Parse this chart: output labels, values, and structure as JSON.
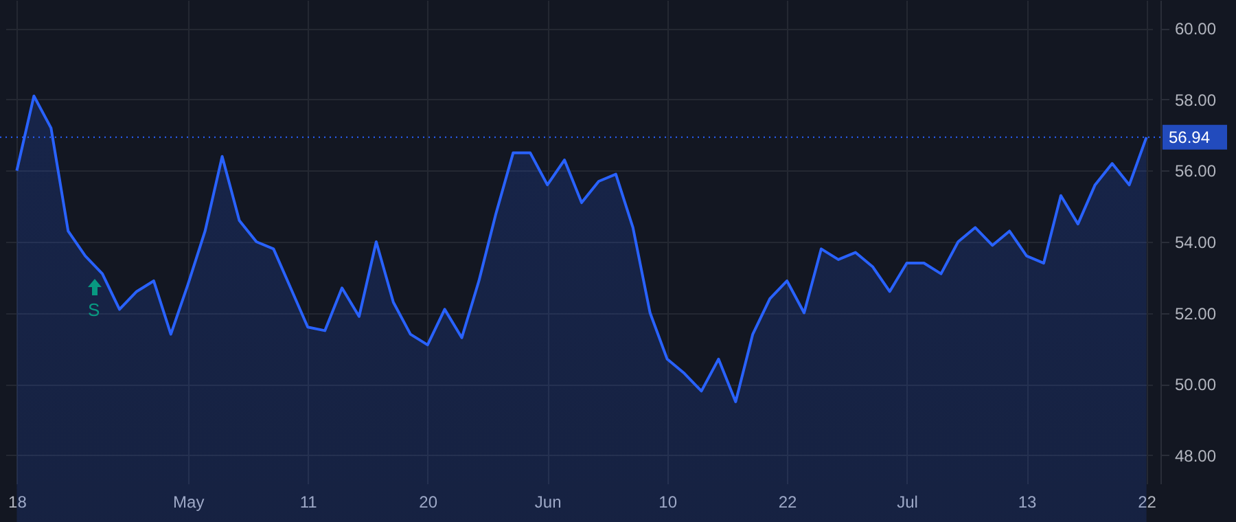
{
  "chart_data": {
    "type": "area",
    "categories": [
      "18",
      null,
      null,
      null,
      null,
      null,
      null,
      null,
      null,
      null,
      "May",
      null,
      null,
      null,
      null,
      null,
      null,
      "11",
      null,
      null,
      null,
      null,
      null,
      null,
      "20",
      null,
      null,
      null,
      null,
      null,
      null,
      "Jun",
      null,
      null,
      null,
      null,
      null,
      null,
      "10",
      null,
      null,
      null,
      null,
      null,
      null,
      "22",
      null,
      null,
      null,
      null,
      null,
      null,
      "Jul",
      null,
      null,
      null,
      null,
      null,
      null,
      "13",
      null,
      null,
      null,
      null,
      null,
      null,
      "22"
    ],
    "series": [
      {
        "color": "#2962ff",
        "values": [
          56.0,
          58.1,
          57.2,
          54.3,
          53.6,
          53.1,
          52.1,
          52.6,
          52.9,
          51.4,
          52.8,
          54.3,
          56.4,
          54.6,
          54.0,
          53.8,
          52.7,
          51.6,
          51.5,
          52.7,
          51.9,
          54.0,
          52.3,
          51.4,
          51.1,
          52.1,
          51.3,
          52.9,
          54.8,
          56.5,
          56.5,
          55.6,
          56.3,
          55.1,
          55.7,
          55.9,
          54.4,
          52.0,
          50.7,
          50.3,
          49.8,
          50.7,
          49.5,
          51.4,
          52.4,
          52.9,
          52.0,
          53.8,
          53.5,
          53.7,
          53.3,
          52.6,
          53.4,
          53.4,
          53.1,
          54.0,
          54.4,
          53.9,
          54.3,
          53.6,
          53.4,
          55.3,
          54.5,
          55.6,
          56.2,
          55.6,
          56.94
        ]
      }
    ],
    "ylim": [
      47.2,
      60.8
    ],
    "yticks": [
      {
        "value": 48,
        "label": "48.00"
      },
      {
        "value": 50,
        "label": "50.00"
      },
      {
        "value": 52,
        "label": "52.00"
      },
      {
        "value": 54,
        "label": "54.00"
      },
      {
        "value": 56,
        "label": "56.00"
      },
      {
        "value": 58,
        "label": "58.00"
      },
      {
        "value": 60,
        "label": "60.00"
      }
    ],
    "grid": true,
    "ref_lines": [
      {
        "axis": "y",
        "value": 56.94,
        "label": "56.94",
        "color": "#2962ff",
        "line_style": "dotted"
      }
    ],
    "annotations": [
      "S"
    ]
  }
}
